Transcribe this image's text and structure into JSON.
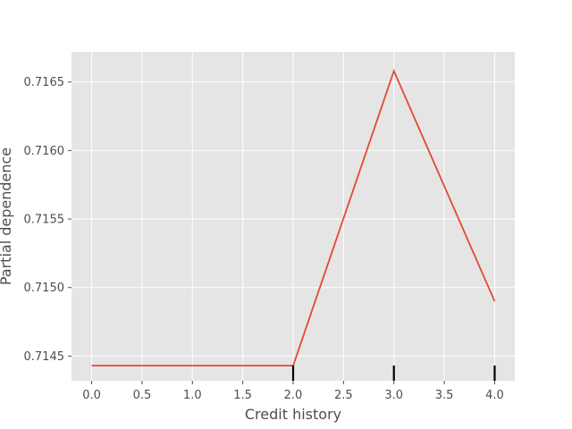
{
  "chart_data": {
    "type": "line",
    "title": "",
    "xlabel": "Credit history",
    "ylabel": "Partial dependence",
    "xlim": [
      -0.2,
      4.2
    ],
    "ylim": [
      0.71432,
      0.71672
    ],
    "x_ticks": [
      0.0,
      0.5,
      1.0,
      1.5,
      2.0,
      2.5,
      3.0,
      3.5,
      4.0
    ],
    "x_tick_labels": [
      "0.0",
      "0.5",
      "1.0",
      "1.5",
      "2.0",
      "2.5",
      "3.0",
      "3.5",
      "4.0"
    ],
    "y_ticks": [
      0.7145,
      0.715,
      0.7155,
      0.716,
      0.7165
    ],
    "y_tick_labels": [
      "0.7145",
      "0.7150",
      "0.7155",
      "0.7160",
      "0.7165"
    ],
    "grid": true,
    "series": [
      {
        "x": [
          0,
          1,
          2,
          3,
          4
        ],
        "y": [
          0.71443,
          0.71443,
          0.71443,
          0.71658,
          0.7149
        ],
        "color": "#E24A33"
      }
    ],
    "rug_x": [
      2,
      3,
      4
    ],
    "colors": {
      "plot_bg": "#E5E5E5",
      "grid": "#FFFFFF",
      "line": "#E24A33",
      "rug": "#000000",
      "text": "#4D4D4D"
    }
  }
}
